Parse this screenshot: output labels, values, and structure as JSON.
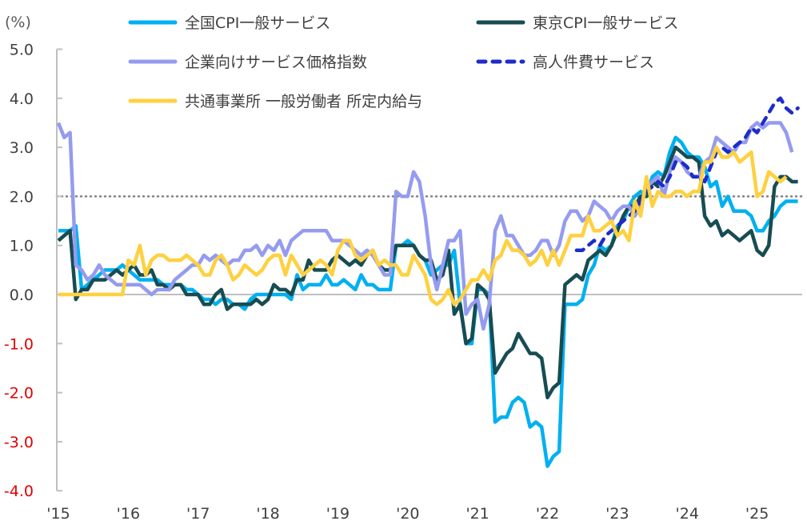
{
  "chart_data": {
    "type": "line",
    "unit_label": "(%)",
    "x_start": "2015-01",
    "frequency": "monthly",
    "xtick_labels": [
      "'15",
      "'16",
      "'17",
      "'18",
      "'19",
      "'20",
      "'21",
      "'22",
      "'23",
      "'24",
      "'25"
    ],
    "ylim": [
      -4.0,
      5.0
    ],
    "yticks": [
      5.0,
      4.0,
      3.0,
      2.0,
      1.0,
      0.0,
      -1.0,
      -2.0,
      -3.0,
      -4.0
    ],
    "ytick_labels": [
      "5.0",
      "4.0",
      "3.0",
      "2.0",
      "1.0",
      "0.0",
      "-1.0",
      "-2.0",
      "-3.0",
      "-4.0"
    ],
    "reference_line": 2.0,
    "colors": {
      "negative_tick": "#e00000",
      "tick": "#404040",
      "axis": "#bfbfbf",
      "reference": "#808080"
    },
    "series": [
      {
        "name": "全国CPI一般サービス",
        "color": "#00b0f0",
        "dash": false,
        "start_index": 0,
        "values": [
          1.3,
          1.3,
          1.3,
          1.4,
          0.1,
          0.2,
          0.3,
          0.4,
          0.5,
          0.5,
          0.5,
          0.6,
          0.5,
          0.4,
          0.3,
          0.3,
          0.3,
          0.3,
          0.2,
          0.2,
          0.2,
          0.2,
          0.1,
          0.1,
          0.0,
          -0.1,
          -0.1,
          -0.2,
          -0.1,
          -0.1,
          -0.2,
          -0.2,
          -0.3,
          -0.1,
          0.0,
          0.0,
          0.0,
          0.0,
          0.0,
          0.0,
          -0.1,
          0.4,
          0.1,
          0.2,
          0.2,
          0.2,
          0.4,
          0.2,
          0.2,
          0.3,
          0.2,
          0.1,
          0.4,
          0.2,
          0.2,
          0.1,
          0.1,
          0.1,
          1.0,
          1.0,
          1.1,
          1.0,
          0.8,
          0.7,
          0.4,
          0.5,
          0.6,
          0.6,
          0.9,
          -0.2,
          -1.0,
          -1.0,
          0.1,
          0.1,
          0.0,
          -2.6,
          -2.5,
          -2.5,
          -2.2,
          -2.1,
          -2.2,
          -2.7,
          -2.6,
          -2.7,
          -3.5,
          -3.3,
          -3.2,
          -0.2,
          -0.2,
          -0.2,
          -0.1,
          0.4,
          0.6,
          1.0,
          0.9,
          1.0,
          1.4,
          1.5,
          1.8,
          2.0,
          2.1,
          2.0,
          2.4,
          2.5,
          2.4,
          2.9,
          3.2,
          3.1,
          2.9,
          2.8,
          2.8,
          2.6,
          2.2,
          2.3,
          1.8,
          2.0,
          1.7,
          1.7,
          1.7,
          1.6,
          1.3,
          1.3,
          1.5,
          1.6,
          1.8,
          1.9,
          1.9,
          1.9
        ]
      },
      {
        "name": "東京CPI一般サービス",
        "color": "#164c52",
        "dash": false,
        "start_index": 0,
        "values": [
          1.1,
          1.2,
          1.3,
          -0.1,
          0.1,
          0.1,
          0.3,
          0.3,
          0.3,
          0.4,
          0.5,
          0.4,
          0.5,
          0.6,
          0.4,
          0.4,
          0.5,
          0.2,
          0.2,
          0.1,
          0.2,
          0.2,
          0.0,
          0.0,
          0.0,
          -0.2,
          -0.2,
          0.0,
          0.1,
          -0.3,
          -0.2,
          -0.2,
          -0.2,
          -0.2,
          -0.1,
          -0.2,
          -0.1,
          0.2,
          0.1,
          0.1,
          0.0,
          0.3,
          0.3,
          0.7,
          0.5,
          0.5,
          0.5,
          0.7,
          0.8,
          0.7,
          0.6,
          0.7,
          0.6,
          0.8,
          0.9,
          0.6,
          0.5,
          0.5,
          1.0,
          1.0,
          1.0,
          1.0,
          0.8,
          0.7,
          0.7,
          0.3,
          0.4,
          0.9,
          -0.4,
          -0.2,
          -1.0,
          -0.9,
          0.2,
          0.1,
          -0.1,
          -1.6,
          -1.4,
          -1.2,
          -1.1,
          -0.8,
          -1.0,
          -1.2,
          -1.2,
          -1.3,
          -2.1,
          -1.9,
          -1.8,
          0.2,
          0.3,
          0.4,
          0.3,
          0.7,
          0.8,
          0.9,
          0.8,
          1.0,
          1.3,
          1.6,
          1.8,
          1.8,
          2.0,
          2.0,
          2.3,
          2.2,
          2.4,
          2.7,
          3.0,
          2.9,
          2.8,
          2.8,
          2.7,
          1.6,
          1.4,
          1.5,
          1.2,
          1.3,
          1.2,
          1.1,
          1.2,
          1.3,
          0.9,
          0.8,
          1.0,
          2.2,
          2.4,
          2.4,
          2.3,
          2.3
        ]
      },
      {
        "name": "企業向けサービス価格指数",
        "color": "#959cf0",
        "dash": false,
        "start_index": 0,
        "values": [
          3.5,
          3.2,
          3.3,
          0.6,
          0.5,
          0.3,
          0.4,
          0.6,
          0.4,
          0.3,
          0.2,
          0.2,
          0.2,
          0.2,
          0.2,
          0.1,
          0.0,
          0.1,
          0.1,
          0.1,
          0.3,
          0.4,
          0.5,
          0.6,
          0.6,
          0.8,
          0.7,
          0.8,
          0.7,
          0.6,
          0.7,
          0.7,
          0.9,
          0.9,
          1.0,
          0.8,
          1.0,
          0.9,
          1.1,
          0.8,
          1.1,
          1.2,
          1.3,
          1.3,
          1.3,
          1.3,
          1.3,
          1.1,
          1.1,
          1.1,
          1.0,
          0.9,
          0.8,
          0.9,
          0.8,
          0.6,
          0.4,
          0.4,
          2.1,
          2.0,
          2.0,
          2.5,
          2.3,
          1.6,
          0.6,
          0.1,
          0.6,
          1.1,
          1.1,
          1.3,
          -0.4,
          -0.2,
          -0.1,
          -0.7,
          -0.2,
          1.3,
          1.6,
          1.2,
          1.2,
          1.0,
          0.8,
          0.8,
          0.9,
          1.1,
          1.1,
          0.8,
          1.0,
          1.5,
          1.7,
          1.7,
          1.5,
          1.6,
          1.9,
          1.8,
          1.7,
          1.5,
          1.7,
          1.8,
          1.8,
          1.6,
          1.8,
          2.2,
          2.3,
          2.4,
          2.0,
          2.5,
          2.8,
          2.7,
          2.5,
          2.4,
          2.4,
          2.7,
          2.8,
          3.2,
          3.1,
          3.0,
          2.9,
          3.1,
          3.1,
          3.4,
          3.5,
          3.4,
          3.5,
          3.5,
          3.5,
          3.3,
          2.9
        ]
      },
      {
        "name": "高人件費サービス",
        "color": "#1f2dc8",
        "dash": true,
        "start_index": 89,
        "values": [
          0.9,
          0.9,
          1.0,
          1.1,
          1.0,
          1.2,
          1.3,
          1.4,
          1.5,
          1.6,
          1.7,
          1.9,
          2.1,
          2.2,
          2.3,
          2.2,
          2.4,
          2.7,
          2.7,
          2.6,
          2.4,
          2.4,
          2.3,
          2.6,
          2.9,
          3.0,
          2.9,
          3.0,
          3.1,
          3.2,
          3.4,
          3.3,
          3.5,
          3.7,
          3.9,
          4.0,
          3.8,
          3.7,
          3.8
        ]
      },
      {
        "name": "共通事業所 一般労働者 所定内給与",
        "color": "#ffd040",
        "dash": false,
        "start_index": 0,
        "values": [
          0,
          0,
          0,
          0,
          0,
          0,
          0,
          0,
          0,
          0,
          0,
          0,
          0.7,
          0.6,
          1.0,
          0.4,
          0.7,
          0.8,
          0.8,
          0.7,
          0.7,
          0.7,
          0.8,
          0.7,
          0.6,
          0.4,
          0.4,
          0.7,
          0.8,
          0.6,
          0.3,
          0.4,
          0.6,
          0.5,
          0.4,
          0.5,
          0.7,
          0.8,
          0.8,
          0.4,
          0.8,
          0.6,
          0.4,
          0.5,
          0.6,
          0.7,
          0.6,
          0.4,
          0.9,
          1.1,
          1.1,
          0.8,
          0.7,
          0.8,
          0.9,
          0.6,
          0.7,
          0.6,
          0.6,
          0.4,
          0.4,
          0.8,
          0.6,
          0.4,
          -0.1,
          -0.2,
          -0.1,
          0.1,
          -0.2,
          -0.1,
          0.1,
          0.3,
          0.3,
          0.5,
          0.3,
          0.7,
          0.8,
          1.1,
          0.9,
          0.9,
          0.8,
          0.6,
          0.7,
          0.9,
          0.6,
          0.9,
          0.6,
          0.9,
          1.2,
          1.2,
          1.2,
          1.6,
          1.3,
          1.3,
          1.4,
          1.5,
          1.2,
          1.3,
          1.1,
          1.9,
          1.6,
          2.4,
          1.8,
          2.1,
          2.0,
          2.0,
          2.1,
          2.1,
          2.0,
          2.1,
          2.1,
          2.7,
          2.7,
          3.0,
          2.8,
          2.8,
          2.9,
          2.7,
          2.8,
          2.9,
          2.0,
          2.1,
          2.5,
          2.4,
          2.3,
          2.4
        ]
      }
    ],
    "legend_placement": "top"
  }
}
